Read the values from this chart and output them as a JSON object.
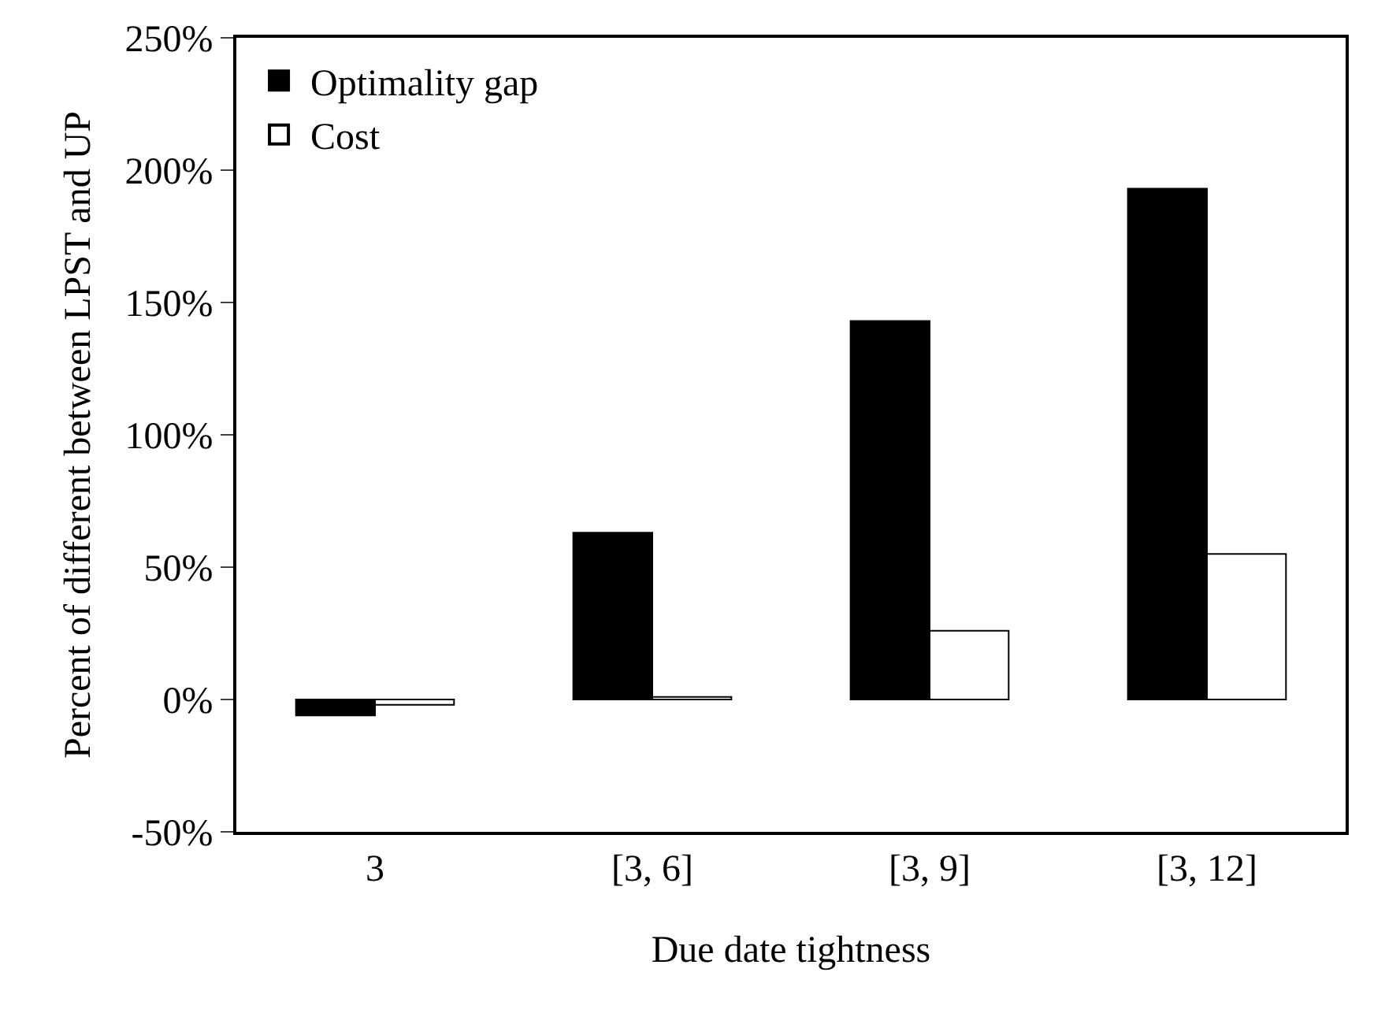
{
  "chart_data": {
    "type": "bar",
    "xlabel": "Due date tightness",
    "ylabel": "Percent of different between LPST and UP",
    "categories": [
      "3",
      "[3, 6]",
      "[3, 9]",
      "[3, 12]"
    ],
    "series": [
      {
        "name": "Optimality gap",
        "color": "#000000",
        "values": [
          -6,
          63,
          143,
          193
        ]
      },
      {
        "name": "Cost",
        "color": "#ffffff",
        "values": [
          -2,
          1,
          26,
          55
        ]
      }
    ],
    "ylim": [
      -50,
      250
    ],
    "yticks": [
      {
        "value": -50,
        "label": "-50%"
      },
      {
        "value": 0,
        "label": "0%"
      },
      {
        "value": 50,
        "label": "50%"
      },
      {
        "value": 100,
        "label": "100%"
      },
      {
        "value": 150,
        "label": "150%"
      },
      {
        "value": 200,
        "label": "200%"
      },
      {
        "value": 250,
        "label": "250%"
      }
    ],
    "grid": false,
    "legend": "top left"
  }
}
